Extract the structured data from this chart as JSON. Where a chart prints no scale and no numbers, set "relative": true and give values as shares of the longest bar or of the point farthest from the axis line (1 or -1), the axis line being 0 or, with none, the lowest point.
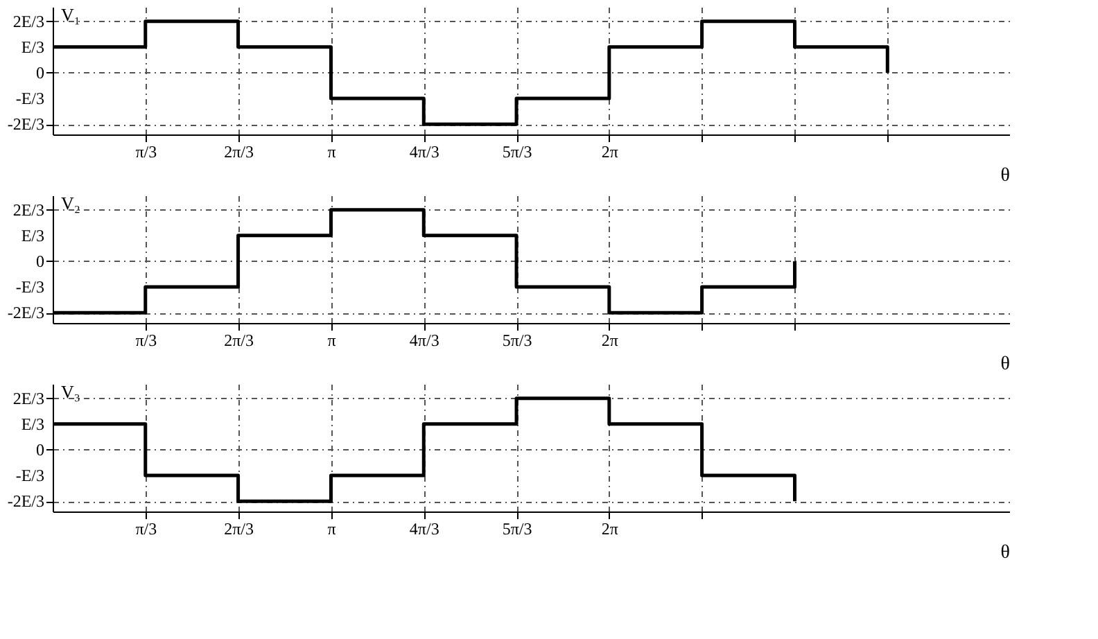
{
  "chart_data": [
    {
      "type": "step",
      "relative": true,
      "ylabel": "V₁",
      "xlabel": "θ",
      "x": [
        0,
        1.047,
        2.094,
        3.142,
        4.189,
        5.236,
        6.283,
        7.33,
        8.378,
        9.425
      ],
      "series": [
        {
          "color": "#000000",
          "values": [
            0.5,
            1,
            0.5,
            -0.5,
            -1,
            -0.5,
            0.5,
            1,
            0.5,
            0
          ]
        }
      ],
      "xlim": [
        0,
        10.8
      ],
      "xticks": [
        {
          "value": 1.047,
          "label": "π/3"
        },
        {
          "value": 2.094,
          "label": "2π/3"
        },
        {
          "value": 3.142,
          "label": "π"
        },
        {
          "value": 4.189,
          "label": "4π/3"
        },
        {
          "value": 5.236,
          "label": "5π/3"
        },
        {
          "value": 6.283,
          "label": "2π"
        },
        {
          "value": 7.33,
          "label": null
        },
        {
          "value": 8.378,
          "label": null
        },
        {
          "value": 9.425,
          "label": null
        }
      ],
      "annotations": [
        "2E/3",
        "E/3",
        "0",
        "-E/3",
        "-2E/3"
      ],
      "grid": true,
      "line_style": "solid",
      "marker": "none"
    },
    {
      "type": "step",
      "relative": true,
      "ylabel": "V₂",
      "xlabel": "θ",
      "x": [
        0,
        1.047,
        2.094,
        3.142,
        4.189,
        5.236,
        6.283,
        7.33,
        8.378
      ],
      "series": [
        {
          "color": "#000000",
          "values": [
            -1,
            -0.5,
            0.5,
            1,
            0.5,
            -0.5,
            -1,
            -0.5,
            0
          ]
        }
      ],
      "xlim": [
        0,
        10.8
      ],
      "xticks": [
        {
          "value": 1.047,
          "label": "π/3"
        },
        {
          "value": 2.094,
          "label": "2π/3"
        },
        {
          "value": 3.142,
          "label": "π"
        },
        {
          "value": 4.189,
          "label": "4π/3"
        },
        {
          "value": 5.236,
          "label": "5π/3"
        },
        {
          "value": 6.283,
          "label": "2π"
        },
        {
          "value": 7.33,
          "label": null
        },
        {
          "value": 8.378,
          "label": null
        }
      ],
      "annotations": [
        "2E/3",
        "E/3",
        "0",
        "-E/3",
        "-2E/3"
      ],
      "grid": true,
      "line_style": "solid",
      "marker": "none"
    },
    {
      "type": "step",
      "relative": true,
      "ylabel": "V₃",
      "xlabel": "θ",
      "x": [
        0,
        1.047,
        2.094,
        3.142,
        4.189,
        5.236,
        6.283,
        7.33,
        8.378
      ],
      "series": [
        {
          "color": "#000000",
          "values": [
            0.5,
            -0.5,
            -1,
            -0.5,
            0.5,
            1,
            0.5,
            -0.5,
            -1
          ]
        }
      ],
      "xlim": [
        0,
        10.8
      ],
      "xticks": [
        {
          "value": 1.047,
          "label": "π/3"
        },
        {
          "value": 2.094,
          "label": "2π/3"
        },
        {
          "value": 3.142,
          "label": "π"
        },
        {
          "value": 4.189,
          "label": "4π/3"
        },
        {
          "value": 5.236,
          "label": "5π/3"
        },
        {
          "value": 6.283,
          "label": "2π"
        },
        {
          "value": 7.33,
          "label": null
        }
      ],
      "annotations": [
        "2E/3",
        "E/3",
        "0",
        "-E/3",
        "-2E/3"
      ],
      "grid": true,
      "line_style": "solid",
      "marker": "none"
    }
  ]
}
